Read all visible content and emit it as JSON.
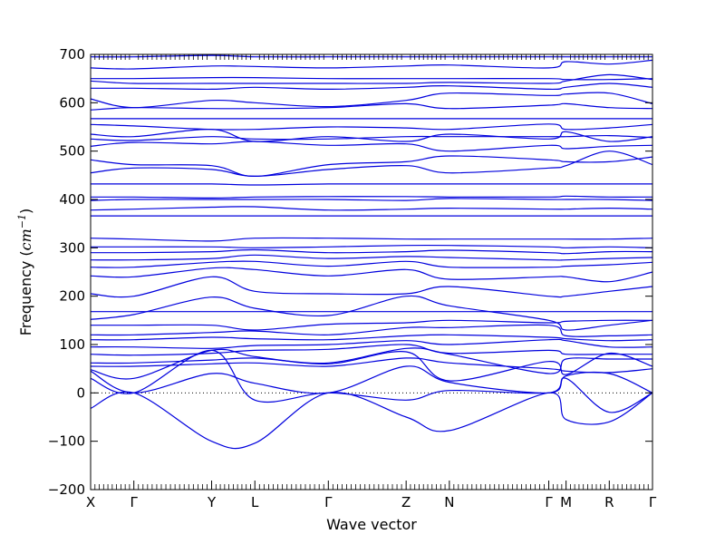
{
  "chart_data": {
    "type": "line",
    "xlabel": "Wave vector",
    "ylabel": "Frequency",
    "ylabel_unit_main": "cm",
    "ylabel_unit_exp": "−1",
    "ylim": [
      -200,
      700
    ],
    "yticks": [
      -200,
      -100,
      0,
      100,
      200,
      300,
      400,
      500,
      600,
      700
    ],
    "xlim": [
      0,
      13.0
    ],
    "xticks": [
      {
        "label": "X",
        "pos": 0
      },
      {
        "label": "Γ",
        "pos": 1.0
      },
      {
        "label": "Y",
        "pos": 2.8
      },
      {
        "label": "L",
        "pos": 3.8
      },
      {
        "label": "Γ",
        "pos": 5.5
      },
      {
        "label": "Z",
        "pos": 7.3
      },
      {
        "label": "N",
        "pos": 8.3
      },
      {
        "label": "Γ",
        "pos": 10.6
      },
      {
        "label": "M",
        "pos": 11.0
      },
      {
        "label": "R",
        "pos": 12.0
      },
      {
        "label": "Γ",
        "pos": 13.0
      }
    ],
    "zero_line": true,
    "line_color": "#0000dd",
    "band_x": [
      0,
      1.0,
      2.8,
      3.8,
      5.5,
      7.3,
      8.3,
      10.6,
      11.0,
      12.0,
      13.0
    ],
    "series": [
      {
        "values": [
          -32,
          0,
          -100,
          -104,
          0,
          -50,
          -78,
          0,
          -55,
          -60,
          0
        ]
      },
      {
        "values": [
          30,
          0,
          88,
          -15,
          0,
          -15,
          5,
          0,
          30,
          -40,
          0
        ]
      },
      {
        "values": [
          45,
          0,
          40,
          20,
          0,
          55,
          22,
          0,
          35,
          40,
          0
        ]
      },
      {
        "values": [
          48,
          30,
          88,
          75,
          60,
          85,
          25,
          65,
          38,
          82,
          55
        ]
      },
      {
        "values": [
          55,
          55,
          60,
          62,
          55,
          72,
          62,
          50,
          45,
          42,
          50
        ]
      },
      {
        "values": [
          62,
          62,
          68,
          72,
          62,
          92,
          80,
          40,
          70,
          70,
          70
        ]
      },
      {
        "values": [
          80,
          78,
          82,
          88,
          90,
          100,
          82,
          88,
          80,
          80,
          80
        ]
      },
      {
        "values": [
          95,
          95,
          92,
          98,
          100,
          108,
          100,
          110,
          108,
          95,
          95
        ]
      },
      {
        "values": [
          110,
          110,
          115,
          112,
          110,
          118,
          120,
          115,
          112,
          108,
          110
        ]
      },
      {
        "values": [
          120,
          120,
          125,
          128,
          120,
          135,
          135,
          140,
          118,
          118,
          120
        ]
      },
      {
        "values": [
          140,
          140,
          140,
          130,
          142,
          145,
          150,
          145,
          148,
          150,
          150
        ]
      },
      {
        "values": [
          152,
          162,
          198,
          175,
          160,
          200,
          180,
          150,
          130,
          140,
          150
        ]
      },
      {
        "values": [
          168,
          168,
          168,
          168,
          168,
          168,
          168,
          168,
          168,
          168,
          168
        ]
      },
      {
        "values": [
          205,
          200,
          240,
          210,
          205,
          205,
          220,
          200,
          200,
          210,
          220
        ]
      },
      {
        "values": [
          242,
          240,
          258,
          255,
          242,
          255,
          235,
          240,
          240,
          230,
          250
        ]
      },
      {
        "values": [
          260,
          260,
          270,
          272,
          262,
          272,
          260,
          260,
          262,
          265,
          270
        ]
      },
      {
        "values": [
          275,
          275,
          278,
          285,
          278,
          282,
          280,
          275,
          275,
          278,
          280
        ]
      },
      {
        "values": [
          290,
          290,
          292,
          296,
          290,
          292,
          295,
          290,
          288,
          292,
          292
        ]
      },
      {
        "values": [
          302,
          302,
          302,
          300,
          302,
          305,
          305,
          302,
          300,
          302,
          300
        ]
      },
      {
        "values": [
          320,
          318,
          314,
          320,
          320,
          318,
          318,
          318,
          318,
          318,
          320
        ]
      },
      {
        "values": [
          366,
          366,
          366,
          366,
          366,
          366,
          366,
          366,
          366,
          366,
          366
        ]
      },
      {
        "values": [
          378,
          380,
          384,
          385,
          378,
          380,
          382,
          380,
          380,
          382,
          380
        ]
      },
      {
        "values": [
          398,
          400,
          400,
          400,
          400,
          398,
          402,
          400,
          400,
          400,
          398
        ]
      },
      {
        "values": [
          405,
          405,
          403,
          405,
          406,
          406,
          405,
          405,
          407,
          405,
          405
        ]
      },
      {
        "values": [
          432,
          432,
          432,
          430,
          432,
          432,
          432,
          432,
          432,
          432,
          432
        ]
      },
      {
        "values": [
          455,
          465,
          462,
          448,
          462,
          470,
          455,
          465,
          470,
          500,
          472
        ]
      },
      {
        "values": [
          482,
          472,
          470,
          448,
          472,
          478,
          490,
          482,
          478,
          478,
          488
        ]
      },
      {
        "values": [
          510,
          518,
          515,
          520,
          512,
          515,
          500,
          512,
          505,
          510,
          512
        ]
      },
      {
        "values": [
          525,
          522,
          530,
          525,
          525,
          530,
          530,
          530,
          530,
          532,
          528
        ]
      },
      {
        "values": [
          535,
          530,
          545,
          520,
          530,
          520,
          535,
          525,
          540,
          520,
          530
        ]
      },
      {
        "values": [
          555,
          552,
          545,
          545,
          550,
          548,
          545,
          556,
          545,
          548,
          555
        ]
      },
      {
        "values": [
          567,
          567,
          567,
          567,
          567,
          567,
          567,
          567,
          567,
          567,
          567
        ]
      },
      {
        "values": [
          585,
          590,
          588,
          588,
          590,
          598,
          588,
          595,
          598,
          590,
          588
        ]
      },
      {
        "values": [
          608,
          590,
          605,
          600,
          592,
          605,
          620,
          615,
          618,
          620,
          598
        ]
      },
      {
        "values": [
          630,
          630,
          628,
          632,
          628,
          632,
          635,
          628,
          632,
          640,
          632
        ]
      },
      {
        "values": [
          645,
          640,
          640,
          640,
          640,
          640,
          642,
          640,
          645,
          658,
          648
        ]
      },
      {
        "values": [
          650,
          650,
          652,
          652,
          650,
          650,
          650,
          650,
          648,
          648,
          650
        ]
      },
      {
        "values": [
          672,
          670,
          676,
          675,
          672,
          676,
          678,
          672,
          685,
          680,
          688
        ]
      },
      {
        "values": [
          695,
          695,
          698,
          695,
          695,
          695,
          695,
          695,
          695,
          695,
          695
        ]
      }
    ]
  }
}
